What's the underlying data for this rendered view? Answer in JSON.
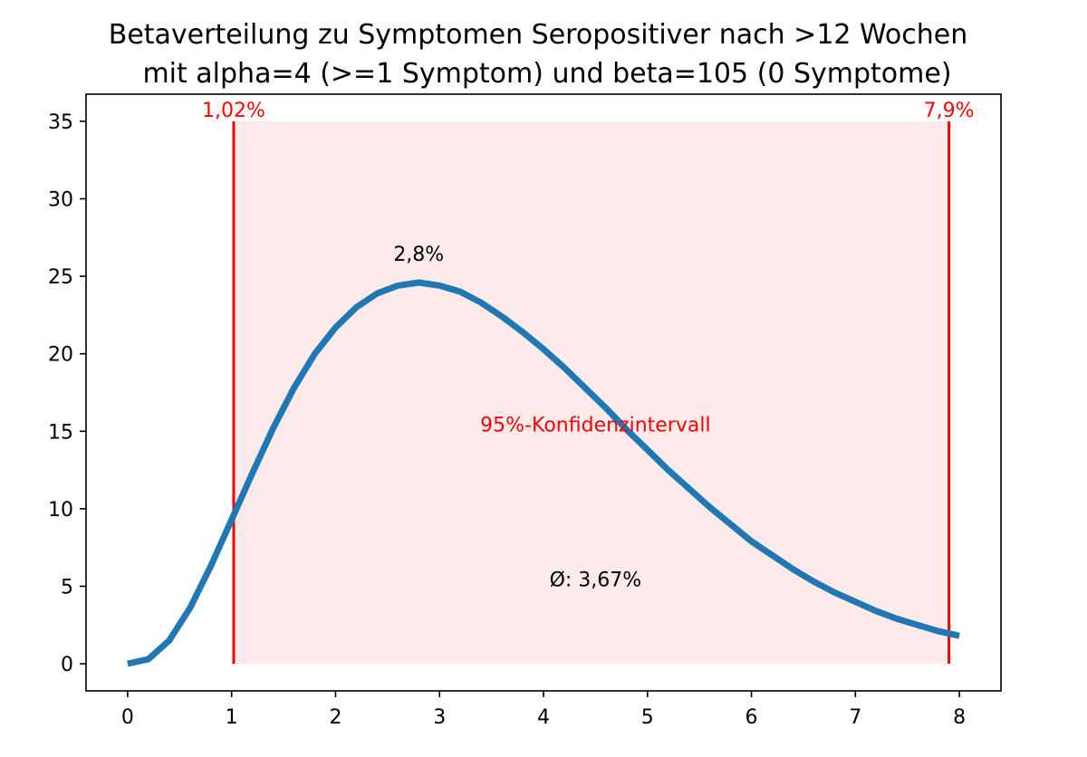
{
  "chart_data": {
    "type": "line",
    "title": "Betaverteilung zu Symptomen Seropositiver nach >12 Wochen\nmit alpha=4 (>=1 Symptom) und beta=105 (0 Symptome)",
    "title_lines": [
      "Betaverteilung zu Symptomen Seropositiver nach >12 Wochen",
      "mit alpha=4 (>=1 Symptom) und beta=105 (0 Symptome)"
    ],
    "xlabel": "",
    "ylabel": "",
    "xlim": [
      -0.4,
      8.4
    ],
    "ylim": [
      -1.75,
      36.75
    ],
    "x_ticks": [
      0,
      1,
      2,
      3,
      4,
      5,
      6,
      7,
      8
    ],
    "y_ticks": [
      0,
      5,
      10,
      15,
      20,
      25,
      30,
      35
    ],
    "grid": false,
    "legend": "none",
    "series": [
      {
        "color": "#1f77b4",
        "x": [
          0,
          0.2,
          0.4,
          0.6,
          0.8,
          1.0,
          1.2,
          1.4,
          1.6,
          1.8,
          2.0,
          2.2,
          2.4,
          2.6,
          2.8,
          3.0,
          3.2,
          3.4,
          3.6,
          3.8,
          4.0,
          4.2,
          4.4,
          4.6,
          4.8,
          5.0,
          5.2,
          5.4,
          5.6,
          5.8,
          6.0,
          6.2,
          6.4,
          6.6,
          6.8,
          7.0,
          7.2,
          7.4,
          7.6,
          7.8,
          8.0
        ],
        "y": [
          0,
          0.3,
          1.5,
          3.6,
          6.3,
          9.3,
          12.3,
          15.2,
          17.8,
          20.0,
          21.7,
          23.0,
          23.9,
          24.4,
          24.6,
          24.4,
          24.0,
          23.3,
          22.4,
          21.4,
          20.3,
          19.1,
          17.8,
          16.5,
          15.1,
          13.8,
          12.5,
          11.3,
          10.1,
          9.0,
          7.9,
          7.0,
          6.1,
          5.3,
          4.6,
          4.0,
          3.4,
          2.9,
          2.5,
          2.1,
          1.8
        ]
      }
    ],
    "confidence_interval": {
      "lower": 1.02,
      "upper": 7.9,
      "top": 35,
      "line_color": "#ff0000",
      "fill_color": "#fdeaea",
      "label": "95%-Konfidenzintervall",
      "lower_label": "1,02%",
      "upper_label": "7,9%"
    },
    "annotations": [
      {
        "text": "2,8%",
        "x": 2.8,
        "y": 26,
        "color": "#000000"
      },
      {
        "text": "95%-Konfidenzintervall",
        "x": 4.5,
        "y": 15,
        "color": "#ff0000"
      },
      {
        "text": "Ø: 3,67%",
        "x": 4.5,
        "y": 5,
        "color": "#000000"
      }
    ]
  }
}
